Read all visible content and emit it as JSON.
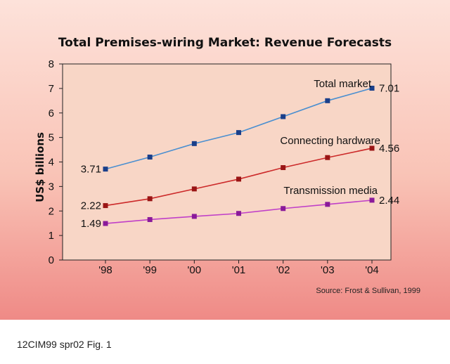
{
  "chart_data": {
    "type": "line",
    "title": "Total Premises-wiring Market: Revenue Forecasts",
    "ylabel": "US$ billions",
    "xlabel": "",
    "categories": [
      "'98",
      "'99",
      "'00",
      "'01",
      "'02",
      "'03",
      "'04"
    ],
    "ylim": [
      0,
      8
    ],
    "yticks": [
      "0",
      "1",
      "2",
      "3",
      "4",
      "5",
      "6",
      "7",
      "8"
    ],
    "series": [
      {
        "name": "Total market",
        "color": "#4a8fd0",
        "marker_color": "#1a3f8a",
        "values": [
          3.71,
          4.2,
          4.75,
          5.2,
          5.85,
          6.5,
          7.01
        ],
        "start_label": "3.71",
        "end_label": "7.01"
      },
      {
        "name": "Connecting hardware",
        "color": "#cc2a2a",
        "marker_color": "#9a1515",
        "values": [
          2.22,
          2.5,
          2.9,
          3.3,
          3.77,
          4.18,
          4.56
        ],
        "start_label": "2.22",
        "end_label": "4.56"
      },
      {
        "name": "Transmission media",
        "color": "#c040c8",
        "marker_color": "#8a1a9a",
        "values": [
          1.49,
          1.65,
          1.78,
          1.9,
          2.1,
          2.27,
          2.44
        ],
        "start_label": "1.49",
        "end_label": "2.44"
      }
    ],
    "source": "Source: Frost & Sullivan, 1999",
    "grid": false,
    "plot_background": "#f8d6c6"
  },
  "caption": "12CIM99 spr02 Fig. 1"
}
